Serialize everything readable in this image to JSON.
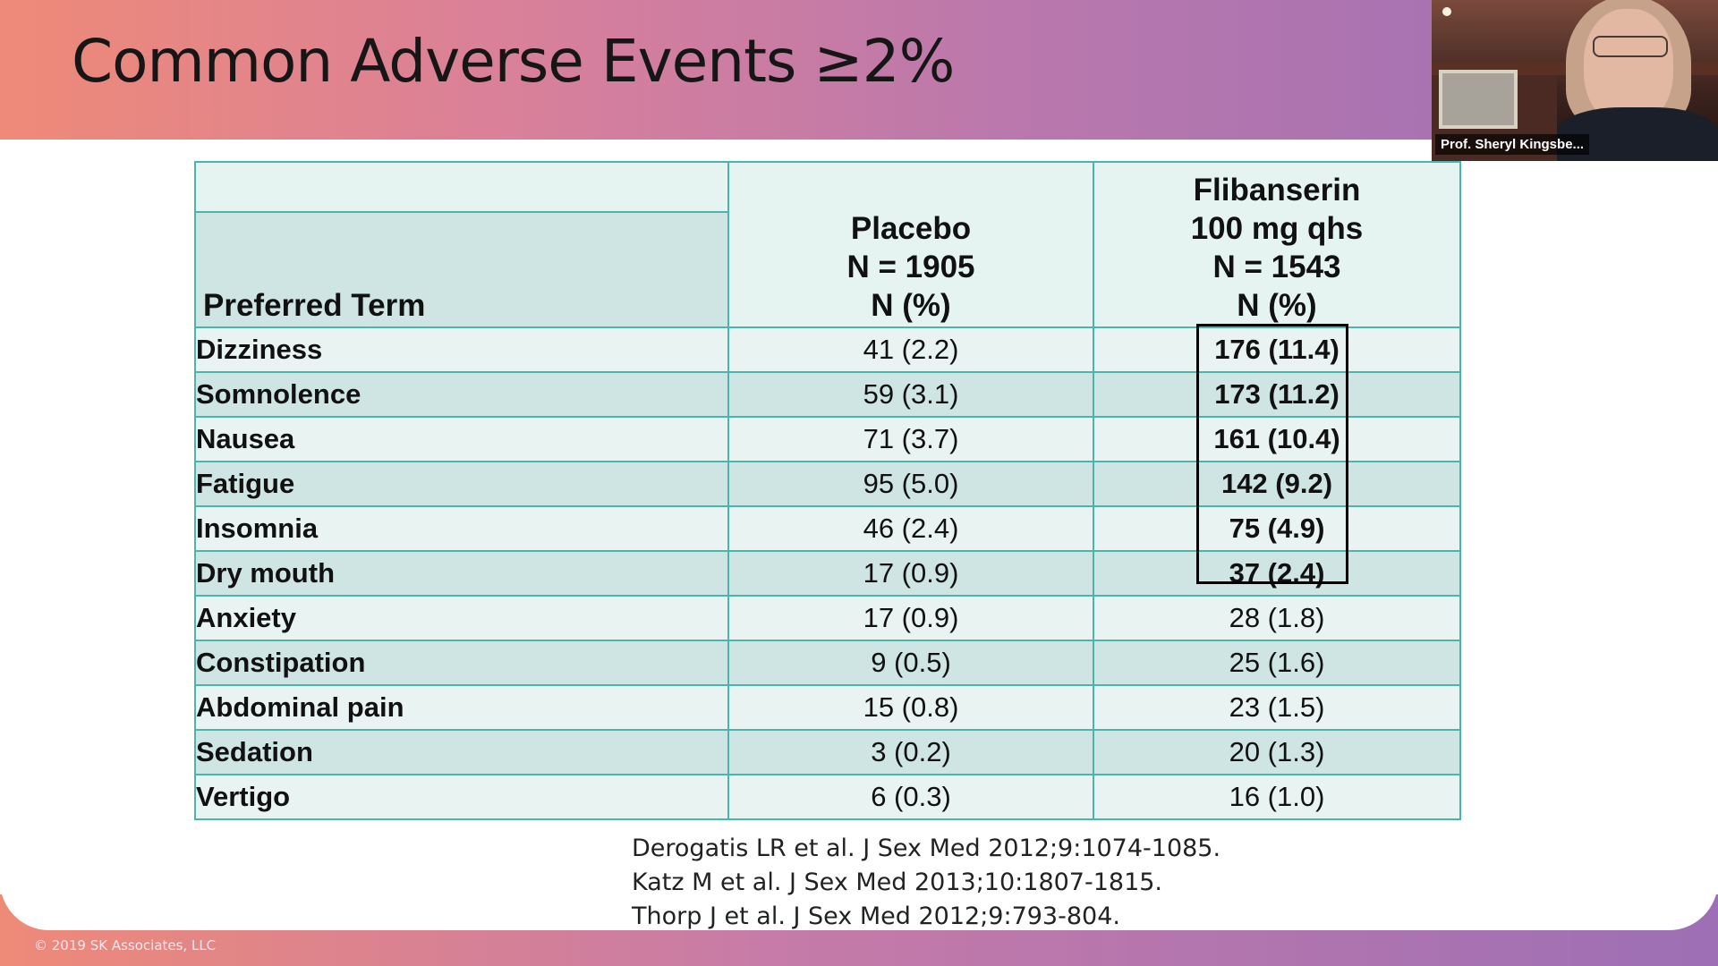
{
  "slide": {
    "title": "Common Adverse Events ≥2%",
    "copyright": "© 2019 SK Associates, LLC"
  },
  "video": {
    "participant_name": "Prof. Sheryl Kingsbe..."
  },
  "table": {
    "headers": {
      "term": "Preferred Term",
      "placebo": [
        "Placebo",
        "N = 1905",
        "N (%)"
      ],
      "flibanserin": [
        "Flibanserin",
        "100 mg qhs",
        "N = 1543",
        "N (%)"
      ]
    },
    "rows": [
      {
        "term": "Dizziness",
        "placebo": "41 (2.2)",
        "flibanserin": "176 (11.4)",
        "highlighted": true
      },
      {
        "term": "Somnolence",
        "placebo": "59 (3.1)",
        "flibanserin": "173 (11.2)",
        "highlighted": true
      },
      {
        "term": "Nausea",
        "placebo": "71 (3.7)",
        "flibanserin": "161 (10.4)",
        "highlighted": true
      },
      {
        "term": "Fatigue",
        "placebo": "95 (5.0)",
        "flibanserin": "142 (9.2)",
        "highlighted": true
      },
      {
        "term": "Insomnia",
        "placebo": "46 (2.4)",
        "flibanserin": "75 (4.9)",
        "highlighted": true
      },
      {
        "term": "Dry mouth",
        "placebo": "17 (0.9)",
        "flibanserin": "37 (2.4)",
        "highlighted": true
      },
      {
        "term": "Anxiety",
        "placebo": "17 (0.9)",
        "flibanserin": "28 (1.8)",
        "highlighted": false
      },
      {
        "term": "Constipation",
        "placebo": "9 (0.5)",
        "flibanserin": "25 (1.6)",
        "highlighted": false
      },
      {
        "term": "Abdominal pain",
        "placebo": "15 (0.8)",
        "flibanserin": "23 (1.5)",
        "highlighted": false
      },
      {
        "term": "Sedation",
        "placebo": "3 (0.2)",
        "flibanserin": "20 (1.3)",
        "highlighted": false
      },
      {
        "term": "Vertigo",
        "placebo": "6 (0.3)",
        "flibanserin": "16 (1.0)",
        "highlighted": false
      }
    ]
  },
  "references": [
    "Derogatis LR et al. J Sex Med 2012;9:1074-1085.",
    "Katz M et al. J Sex Med 2013;10:1807-1815.",
    "Thorp J et al. J Sex Med 2012;9:793-804."
  ],
  "colors": {
    "table_border": "#4bb5ad",
    "row_light": "#e9f4f2",
    "row_dark": "#cfe5e3",
    "header_gradient_start": "#ee8a78",
    "header_gradient_end": "#9d6fb5"
  }
}
